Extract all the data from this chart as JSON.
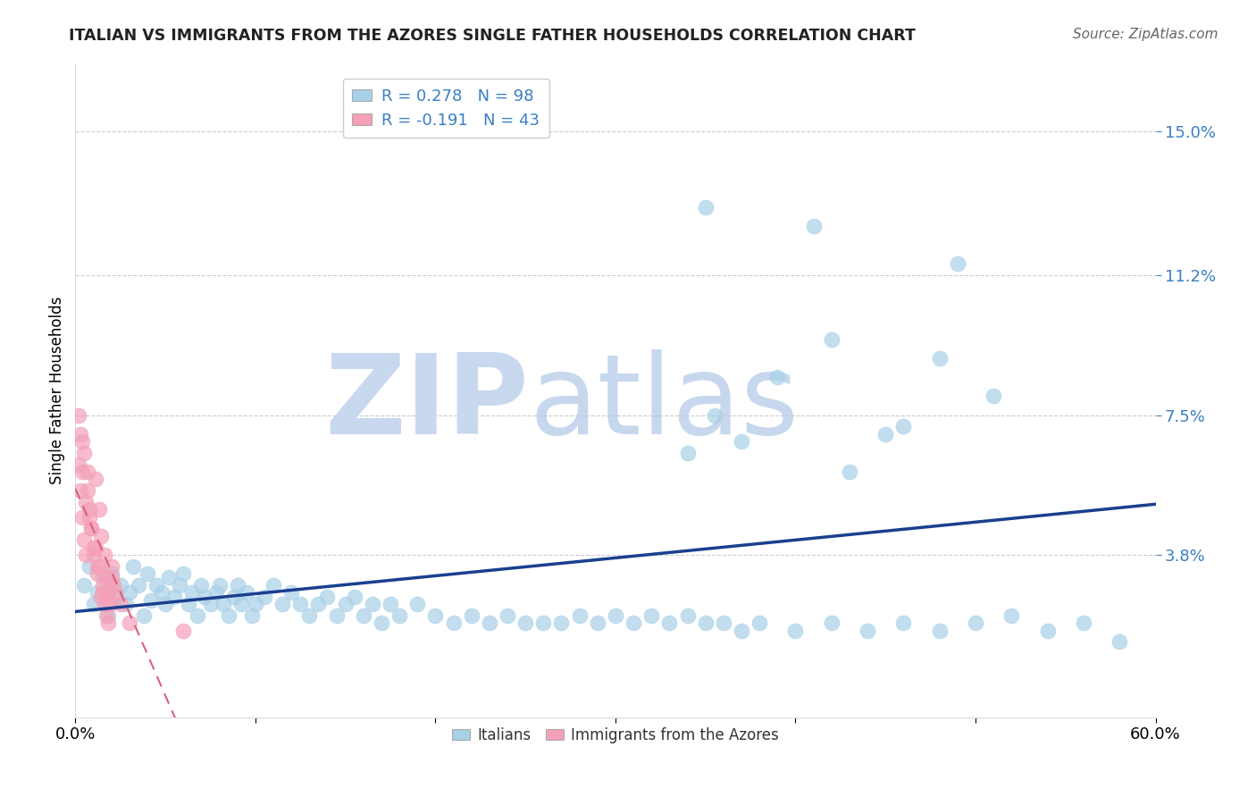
{
  "title": "ITALIAN VS IMMIGRANTS FROM THE AZORES SINGLE FATHER HOUSEHOLDS CORRELATION CHART",
  "source": "Source: ZipAtlas.com",
  "ylabel": "Single Father Households",
  "xlim": [
    0.0,
    0.6
  ],
  "ylim": [
    -0.005,
    0.168
  ],
  "yticks": [
    0.038,
    0.075,
    0.112,
    0.15
  ],
  "ytick_labels": [
    "3.8%",
    "7.5%",
    "11.2%",
    "15.0%"
  ],
  "legend_r1": "R = 0.278",
  "legend_n1": "N = 98",
  "legend_r2": "R = -0.191",
  "legend_n2": "N = 43",
  "blue_color": "#A8D0E8",
  "pink_color": "#F4A0B8",
  "blue_line_color": "#1A3F8F",
  "pink_line_color": "#D9607A",
  "watermark_zip": "ZIP",
  "watermark_atlas": "atlas",
  "watermark_color": "#D5E5F5",
  "blue_scatter_x": [
    0.005,
    0.008,
    0.01,
    0.012,
    0.015,
    0.018,
    0.02,
    0.022,
    0.025,
    0.028,
    0.03,
    0.032,
    0.035,
    0.038,
    0.04,
    0.042,
    0.045,
    0.048,
    0.05,
    0.052,
    0.055,
    0.058,
    0.06,
    0.063,
    0.065,
    0.068,
    0.07,
    0.072,
    0.075,
    0.078,
    0.08,
    0.082,
    0.085,
    0.088,
    0.09,
    0.092,
    0.095,
    0.098,
    0.1,
    0.105,
    0.11,
    0.115,
    0.12,
    0.125,
    0.13,
    0.135,
    0.14,
    0.145,
    0.15,
    0.155,
    0.16,
    0.165,
    0.17,
    0.175,
    0.18,
    0.19,
    0.2,
    0.21,
    0.22,
    0.23,
    0.24,
    0.25,
    0.26,
    0.27,
    0.28,
    0.29,
    0.3,
    0.31,
    0.32,
    0.33,
    0.34,
    0.35,
    0.36,
    0.37,
    0.38,
    0.4,
    0.42,
    0.44,
    0.46,
    0.48,
    0.5,
    0.52,
    0.54,
    0.56,
    0.58,
    0.355,
    0.42,
    0.48,
    0.34,
    0.39,
    0.45,
    0.51,
    0.43,
    0.37,
    0.46,
    0.35,
    0.49,
    0.41
  ],
  "blue_scatter_y": [
    0.03,
    0.035,
    0.025,
    0.028,
    0.032,
    0.022,
    0.033,
    0.027,
    0.03,
    0.025,
    0.028,
    0.035,
    0.03,
    0.022,
    0.033,
    0.026,
    0.03,
    0.028,
    0.025,
    0.032,
    0.027,
    0.03,
    0.033,
    0.025,
    0.028,
    0.022,
    0.03,
    0.027,
    0.025,
    0.028,
    0.03,
    0.025,
    0.022,
    0.027,
    0.03,
    0.025,
    0.028,
    0.022,
    0.025,
    0.027,
    0.03,
    0.025,
    0.028,
    0.025,
    0.022,
    0.025,
    0.027,
    0.022,
    0.025,
    0.027,
    0.022,
    0.025,
    0.02,
    0.025,
    0.022,
    0.025,
    0.022,
    0.02,
    0.022,
    0.02,
    0.022,
    0.02,
    0.02,
    0.02,
    0.022,
    0.02,
    0.022,
    0.02,
    0.022,
    0.02,
    0.022,
    0.02,
    0.02,
    0.018,
    0.02,
    0.018,
    0.02,
    0.018,
    0.02,
    0.018,
    0.02,
    0.022,
    0.018,
    0.02,
    0.015,
    0.075,
    0.095,
    0.09,
    0.065,
    0.085,
    0.07,
    0.08,
    0.06,
    0.068,
    0.072,
    0.13,
    0.115,
    0.125
  ],
  "pink_scatter_x": [
    0.002,
    0.003,
    0.004,
    0.005,
    0.006,
    0.007,
    0.008,
    0.009,
    0.01,
    0.011,
    0.012,
    0.013,
    0.014,
    0.015,
    0.016,
    0.017,
    0.018,
    0.019,
    0.02,
    0.021,
    0.003,
    0.005,
    0.007,
    0.009,
    0.011,
    0.013,
    0.015,
    0.017,
    0.004,
    0.006,
    0.008,
    0.01,
    0.012,
    0.014,
    0.016,
    0.018,
    0.002,
    0.004,
    0.02,
    0.022,
    0.025,
    0.03,
    0.06
  ],
  "pink_scatter_y": [
    0.062,
    0.055,
    0.048,
    0.042,
    0.038,
    0.06,
    0.05,
    0.045,
    0.04,
    0.058,
    0.035,
    0.05,
    0.043,
    0.03,
    0.038,
    0.032,
    0.028,
    0.025,
    0.035,
    0.03,
    0.07,
    0.065,
    0.055,
    0.045,
    0.04,
    0.035,
    0.028,
    0.022,
    0.068,
    0.052,
    0.048,
    0.038,
    0.033,
    0.027,
    0.025,
    0.02,
    0.075,
    0.06,
    0.032,
    0.028,
    0.025,
    0.02,
    0.018
  ]
}
